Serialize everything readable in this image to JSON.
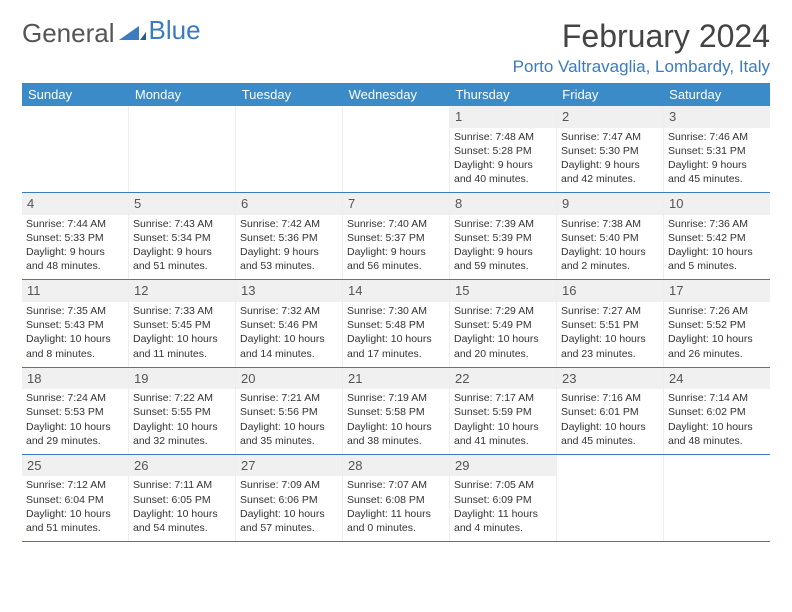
{
  "logo": {
    "text1": "General",
    "text2": "Blue"
  },
  "title": "February 2024",
  "location": "Porto Valtravaglia, Lombardy, Italy",
  "header_bg": "#3b8bc9",
  "accent": "#3b7bbf",
  "weekdays": [
    "Sunday",
    "Monday",
    "Tuesday",
    "Wednesday",
    "Thursday",
    "Friday",
    "Saturday"
  ],
  "weeks": [
    [
      {
        "n": "",
        "sr": "",
        "ss": "",
        "dl": ""
      },
      {
        "n": "",
        "sr": "",
        "ss": "",
        "dl": ""
      },
      {
        "n": "",
        "sr": "",
        "ss": "",
        "dl": ""
      },
      {
        "n": "",
        "sr": "",
        "ss": "",
        "dl": ""
      },
      {
        "n": "1",
        "sr": "Sunrise: 7:48 AM",
        "ss": "Sunset: 5:28 PM",
        "dl": "Daylight: 9 hours and 40 minutes."
      },
      {
        "n": "2",
        "sr": "Sunrise: 7:47 AM",
        "ss": "Sunset: 5:30 PM",
        "dl": "Daylight: 9 hours and 42 minutes."
      },
      {
        "n": "3",
        "sr": "Sunrise: 7:46 AM",
        "ss": "Sunset: 5:31 PM",
        "dl": "Daylight: 9 hours and 45 minutes."
      }
    ],
    [
      {
        "n": "4",
        "sr": "Sunrise: 7:44 AM",
        "ss": "Sunset: 5:33 PM",
        "dl": "Daylight: 9 hours and 48 minutes."
      },
      {
        "n": "5",
        "sr": "Sunrise: 7:43 AM",
        "ss": "Sunset: 5:34 PM",
        "dl": "Daylight: 9 hours and 51 minutes."
      },
      {
        "n": "6",
        "sr": "Sunrise: 7:42 AM",
        "ss": "Sunset: 5:36 PM",
        "dl": "Daylight: 9 hours and 53 minutes."
      },
      {
        "n": "7",
        "sr": "Sunrise: 7:40 AM",
        "ss": "Sunset: 5:37 PM",
        "dl": "Daylight: 9 hours and 56 minutes."
      },
      {
        "n": "8",
        "sr": "Sunrise: 7:39 AM",
        "ss": "Sunset: 5:39 PM",
        "dl": "Daylight: 9 hours and 59 minutes."
      },
      {
        "n": "9",
        "sr": "Sunrise: 7:38 AM",
        "ss": "Sunset: 5:40 PM",
        "dl": "Daylight: 10 hours and 2 minutes."
      },
      {
        "n": "10",
        "sr": "Sunrise: 7:36 AM",
        "ss": "Sunset: 5:42 PM",
        "dl": "Daylight: 10 hours and 5 minutes."
      }
    ],
    [
      {
        "n": "11",
        "sr": "Sunrise: 7:35 AM",
        "ss": "Sunset: 5:43 PM",
        "dl": "Daylight: 10 hours and 8 minutes."
      },
      {
        "n": "12",
        "sr": "Sunrise: 7:33 AM",
        "ss": "Sunset: 5:45 PM",
        "dl": "Daylight: 10 hours and 11 minutes."
      },
      {
        "n": "13",
        "sr": "Sunrise: 7:32 AM",
        "ss": "Sunset: 5:46 PM",
        "dl": "Daylight: 10 hours and 14 minutes."
      },
      {
        "n": "14",
        "sr": "Sunrise: 7:30 AM",
        "ss": "Sunset: 5:48 PM",
        "dl": "Daylight: 10 hours and 17 minutes."
      },
      {
        "n": "15",
        "sr": "Sunrise: 7:29 AM",
        "ss": "Sunset: 5:49 PM",
        "dl": "Daylight: 10 hours and 20 minutes."
      },
      {
        "n": "16",
        "sr": "Sunrise: 7:27 AM",
        "ss": "Sunset: 5:51 PM",
        "dl": "Daylight: 10 hours and 23 minutes."
      },
      {
        "n": "17",
        "sr": "Sunrise: 7:26 AM",
        "ss": "Sunset: 5:52 PM",
        "dl": "Daylight: 10 hours and 26 minutes."
      }
    ],
    [
      {
        "n": "18",
        "sr": "Sunrise: 7:24 AM",
        "ss": "Sunset: 5:53 PM",
        "dl": "Daylight: 10 hours and 29 minutes."
      },
      {
        "n": "19",
        "sr": "Sunrise: 7:22 AM",
        "ss": "Sunset: 5:55 PM",
        "dl": "Daylight: 10 hours and 32 minutes."
      },
      {
        "n": "20",
        "sr": "Sunrise: 7:21 AM",
        "ss": "Sunset: 5:56 PM",
        "dl": "Daylight: 10 hours and 35 minutes."
      },
      {
        "n": "21",
        "sr": "Sunrise: 7:19 AM",
        "ss": "Sunset: 5:58 PM",
        "dl": "Daylight: 10 hours and 38 minutes."
      },
      {
        "n": "22",
        "sr": "Sunrise: 7:17 AM",
        "ss": "Sunset: 5:59 PM",
        "dl": "Daylight: 10 hours and 41 minutes."
      },
      {
        "n": "23",
        "sr": "Sunrise: 7:16 AM",
        "ss": "Sunset: 6:01 PM",
        "dl": "Daylight: 10 hours and 45 minutes."
      },
      {
        "n": "24",
        "sr": "Sunrise: 7:14 AM",
        "ss": "Sunset: 6:02 PM",
        "dl": "Daylight: 10 hours and 48 minutes."
      }
    ],
    [
      {
        "n": "25",
        "sr": "Sunrise: 7:12 AM",
        "ss": "Sunset: 6:04 PM",
        "dl": "Daylight: 10 hours and 51 minutes."
      },
      {
        "n": "26",
        "sr": "Sunrise: 7:11 AM",
        "ss": "Sunset: 6:05 PM",
        "dl": "Daylight: 10 hours and 54 minutes."
      },
      {
        "n": "27",
        "sr": "Sunrise: 7:09 AM",
        "ss": "Sunset: 6:06 PM",
        "dl": "Daylight: 10 hours and 57 minutes."
      },
      {
        "n": "28",
        "sr": "Sunrise: 7:07 AM",
        "ss": "Sunset: 6:08 PM",
        "dl": "Daylight: 11 hours and 0 minutes."
      },
      {
        "n": "29",
        "sr": "Sunrise: 7:05 AM",
        "ss": "Sunset: 6:09 PM",
        "dl": "Daylight: 11 hours and 4 minutes."
      },
      {
        "n": "",
        "sr": "",
        "ss": "",
        "dl": ""
      },
      {
        "n": "",
        "sr": "",
        "ss": "",
        "dl": ""
      }
    ]
  ]
}
